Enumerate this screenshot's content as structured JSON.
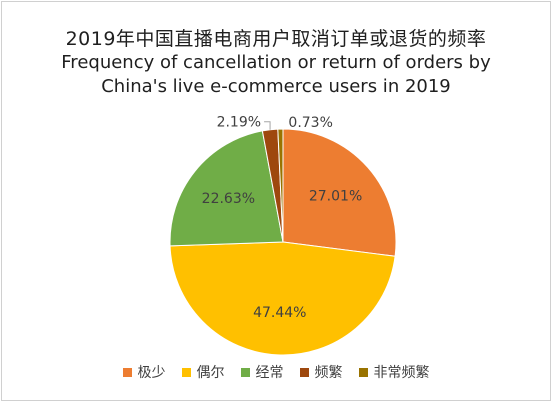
{
  "chart_data": {
    "type": "pie",
    "title": "2019年中国直播电商用户取消订单或退货的频率",
    "subtitle_line1": "Frequency of cancellation or return of orders by",
    "subtitle_line2": "China's live e-commerce users in 2019",
    "categories": [
      "极少",
      "偶尔",
      "经常",
      "频繁",
      "非常频繁"
    ],
    "values": [
      27.01,
      47.44,
      22.63,
      2.19,
      0.73
    ],
    "labels": [
      "27.01%",
      "47.44%",
      "22.63%",
      "2.19%",
      "0.73%"
    ],
    "colors": [
      "#ED7D31",
      "#FFC000",
      "#70AD47",
      "#9E480E",
      "#997300"
    ],
    "start_angle_deg": 0,
    "direction": "clockwise",
    "legend_position": "bottom"
  }
}
